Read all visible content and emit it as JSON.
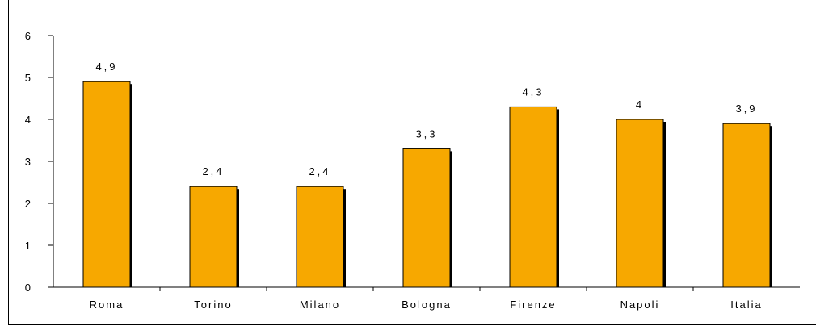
{
  "chart_data": {
    "type": "bar",
    "categories": [
      "Roma",
      "Torino",
      "Milano",
      "Bologna",
      "Firenze",
      "Napoli",
      "Italia"
    ],
    "values": [
      4.9,
      2.4,
      2.4,
      3.3,
      4.3,
      4,
      3.9
    ],
    "value_labels": [
      "4,9",
      "2,4",
      "2,4",
      "3,3",
      "4,3",
      "4",
      "3,9"
    ],
    "title": "",
    "xlabel": "",
    "ylabel": "",
    "ylim": [
      0,
      6
    ],
    "yticks": [
      "0",
      "1",
      "2",
      "3",
      "4",
      "5",
      "6"
    ],
    "grid": false,
    "legend": "none",
    "colors": {
      "bar_fill": "#f7a800",
      "bar_outline": "#000000",
      "axis": "#000000"
    }
  }
}
